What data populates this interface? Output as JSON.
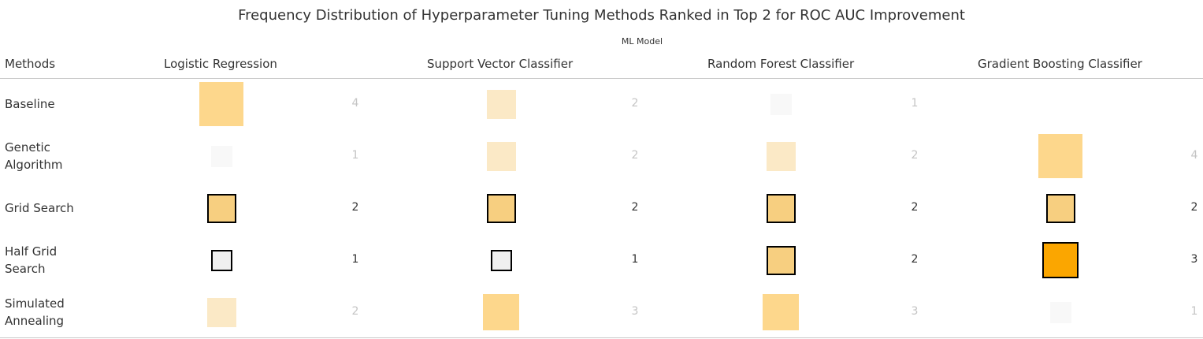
{
  "chart_data": {
    "type": "heatmap",
    "title": "Frequency Distribution of Hyperparameter Tuning Methods Ranked in Top 2 for ROC AUC Improvement",
    "column_group_label": "ML Model",
    "row_header_label": "Methods",
    "columns": [
      "Logistic Regression",
      "Support Vector Classifier",
      "Random Forest Classifier",
      "Gradient Boosting Classifier"
    ],
    "rows": [
      "Baseline",
      "Genetic Algorithm",
      "Grid Search",
      "Half Grid Search",
      "Simulated Annealing"
    ],
    "values": [
      [
        4,
        2,
        1,
        null
      ],
      [
        1,
        2,
        2,
        4
      ],
      [
        2,
        2,
        2,
        2
      ],
      [
        1,
        1,
        2,
        3
      ],
      [
        2,
        3,
        3,
        1
      ]
    ],
    "highlighted_rows": [
      "Grid Search",
      "Half Grid Search"
    ],
    "color_scale": {
      "min": 1,
      "max": 3,
      "low": "#f0f0f0",
      "mid": "#f7cf80",
      "high": "#fba600"
    },
    "dimmed_opacity": 0.3
  }
}
